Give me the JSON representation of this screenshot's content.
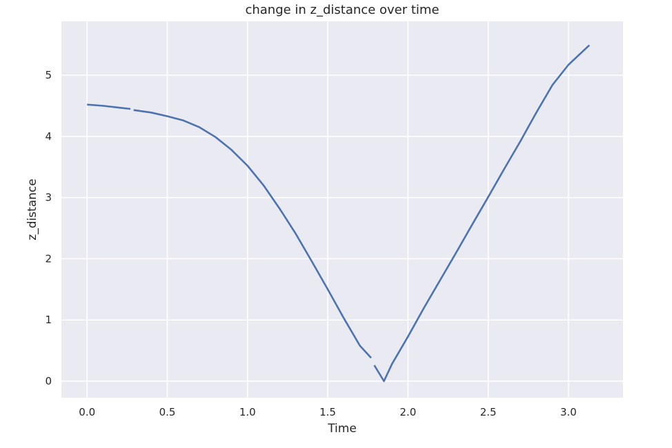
{
  "chart_data": {
    "type": "line",
    "title": "change in z_distance over time",
    "xlabel": "Time",
    "ylabel": "z_distance",
    "xlim": [
      -0.16,
      3.34
    ],
    "ylim": [
      -0.27,
      5.88
    ],
    "x_ticks": [
      0.0,
      0.5,
      1.0,
      1.5,
      2.0,
      2.5,
      3.0
    ],
    "x_tick_labels": [
      "0.0",
      "0.5",
      "1.0",
      "1.5",
      "2.0",
      "2.5",
      "3.0"
    ],
    "y_ticks": [
      0,
      1,
      2,
      3,
      4,
      5
    ],
    "y_tick_labels": [
      "0",
      "1",
      "2",
      "3",
      "4",
      "5"
    ],
    "grid": true,
    "style": "seaborn-darkgrid",
    "colors": {
      "axes_background": "#eaeaf2",
      "grid": "#ffffff",
      "line": "#4c72b0",
      "text": "#262626"
    },
    "series": [
      {
        "segments": [
          [
            [
              0.0,
              4.52
            ],
            [
              0.1,
              4.5
            ],
            [
              0.2,
              4.47
            ],
            [
              0.27,
              4.45
            ]
          ],
          [
            [
              0.29,
              4.43
            ],
            [
              0.4,
              4.39
            ],
            [
              0.5,
              4.33
            ],
            [
              0.6,
              4.26
            ],
            [
              0.7,
              4.15
            ],
            [
              0.8,
              3.99
            ],
            [
              0.9,
              3.78
            ],
            [
              1.0,
              3.52
            ],
            [
              1.1,
              3.2
            ],
            [
              1.2,
              2.82
            ],
            [
              1.3,
              2.41
            ],
            [
              1.4,
              1.96
            ],
            [
              1.5,
              1.5
            ],
            [
              1.6,
              1.03
            ],
            [
              1.7,
              0.58
            ],
            [
              1.77,
              0.38
            ]
          ],
          [
            [
              1.79,
              0.26
            ],
            [
              1.85,
              0.0
            ],
            [
              1.9,
              0.28
            ],
            [
              2.0,
              0.73
            ],
            [
              2.1,
              1.2
            ],
            [
              2.2,
              1.65
            ],
            [
              2.3,
              2.1
            ],
            [
              2.4,
              2.56
            ],
            [
              2.5,
              3.01
            ],
            [
              2.6,
              3.47
            ],
            [
              2.7,
              3.92
            ],
            [
              2.8,
              4.39
            ],
            [
              2.9,
              4.84
            ],
            [
              3.0,
              5.17
            ],
            [
              3.13,
              5.49
            ]
          ]
        ]
      }
    ]
  }
}
